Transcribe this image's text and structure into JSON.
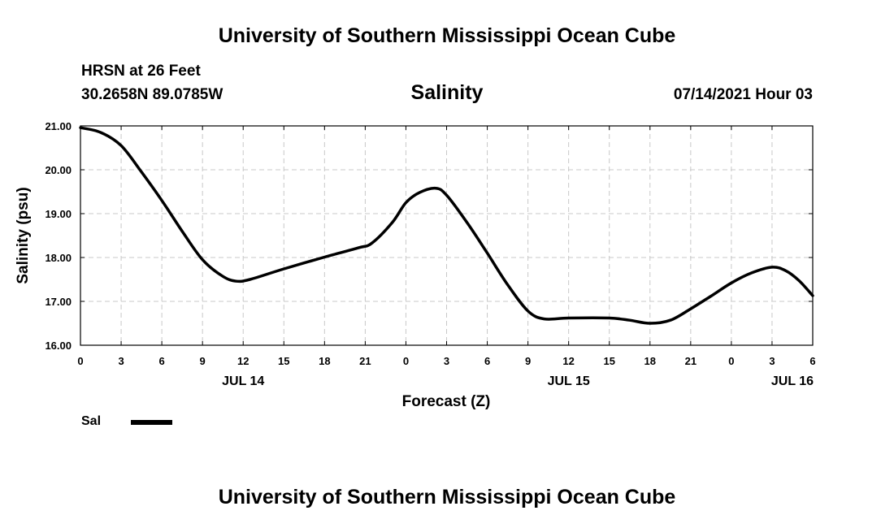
{
  "header": {
    "title_top": "University of Southern Mississippi Ocean Cube",
    "station": "HRSN at 26 Feet",
    "coords": "30.2658N  89.0785W",
    "datetime": "07/14/2021 Hour 03",
    "title_bottom": "University of Southern Mississippi Ocean Cube"
  },
  "chart_data": {
    "type": "line",
    "title": "Salinity",
    "xlabel": "Forecast (Z)",
    "ylabel": "Salinity (psu)",
    "x_unit": "forecast hour",
    "xlim": [
      0,
      54
    ],
    "ylim": [
      16.0,
      21.0
    ],
    "y_ticks": [
      "16.00",
      "17.00",
      "18.00",
      "19.00",
      "20.00",
      "21.00"
    ],
    "x_ticks": [
      {
        "x": 0,
        "label": "0"
      },
      {
        "x": 3,
        "label": "3"
      },
      {
        "x": 6,
        "label": "6"
      },
      {
        "x": 9,
        "label": "9"
      },
      {
        "x": 12,
        "label": "12"
      },
      {
        "x": 15,
        "label": "15"
      },
      {
        "x": 18,
        "label": "18"
      },
      {
        "x": 21,
        "label": "21"
      },
      {
        "x": 24,
        "label": "0"
      },
      {
        "x": 27,
        "label": "3"
      },
      {
        "x": 30,
        "label": "6"
      },
      {
        "x": 33,
        "label": "9"
      },
      {
        "x": 36,
        "label": "12"
      },
      {
        "x": 39,
        "label": "15"
      },
      {
        "x": 42,
        "label": "18"
      },
      {
        "x": 45,
        "label": "21"
      },
      {
        "x": 48,
        "label": "0"
      },
      {
        "x": 51,
        "label": "3"
      },
      {
        "x": 54,
        "label": "6"
      }
    ],
    "date_labels": [
      {
        "x": 12,
        "label": "JUL 14"
      },
      {
        "x": 36,
        "label": "JUL 15"
      },
      {
        "x": 52.5,
        "label": "JUL 16"
      }
    ],
    "grid": true,
    "legend_placement": "bottom-left",
    "series": [
      {
        "name": "Sal",
        "color": "#000000",
        "x": [
          0,
          1.5,
          3,
          4.5,
          6,
          7.5,
          9,
          10.5,
          11.5,
          12.5,
          15,
          18,
          20.5,
          21.5,
          23,
          24,
          25,
          26.2,
          27,
          28.5,
          30,
          31.5,
          33,
          34.2,
          36,
          39,
          40.5,
          42,
          43.5,
          45,
          46.5,
          48,
          49.5,
          51,
          52,
          53,
          54
        ],
        "y": [
          20.96,
          20.85,
          20.55,
          19.95,
          19.3,
          18.6,
          17.95,
          17.57,
          17.46,
          17.5,
          17.74,
          18.01,
          18.22,
          18.33,
          18.8,
          19.25,
          19.48,
          19.58,
          19.42,
          18.8,
          18.1,
          17.38,
          16.78,
          16.6,
          16.62,
          16.62,
          16.57,
          16.5,
          16.57,
          16.83,
          17.12,
          17.42,
          17.65,
          17.78,
          17.7,
          17.47,
          17.13
        ]
      }
    ]
  }
}
